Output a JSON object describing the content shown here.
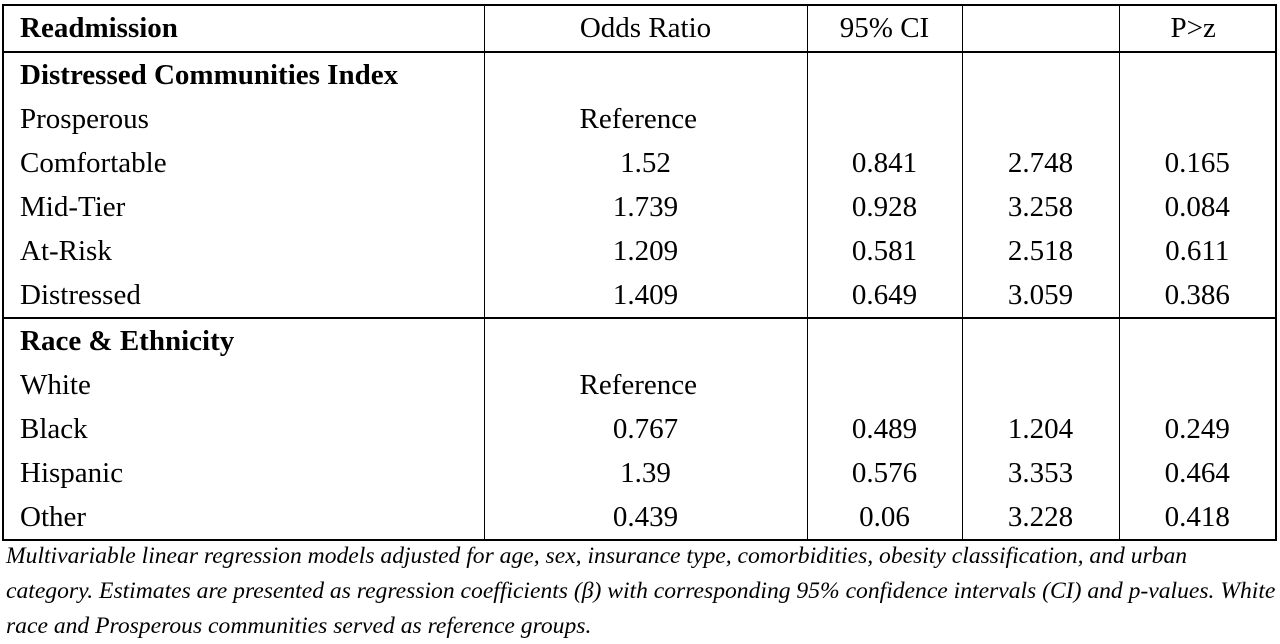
{
  "table": {
    "headers": {
      "label": "Readmission",
      "odds_ratio": "Odds Ratio",
      "ci": "95% CI",
      "ci_upper": "",
      "p": "P>z"
    },
    "sections": [
      {
        "title": "Distressed Communities Index",
        "rows": [
          {
            "label": "Prosperous",
            "or": "Reference",
            "ci_low": "",
            "ci_high": "",
            "p": ""
          },
          {
            "label": "Comfortable",
            "or": "1.52",
            "ci_low": "0.841",
            "ci_high": "2.748",
            "p": "0.165"
          },
          {
            "label": "Mid-Tier",
            "or": "1.739",
            "ci_low": "0.928",
            "ci_high": "3.258",
            "p": "0.084"
          },
          {
            "label": "At-Risk",
            "or": "1.209",
            "ci_low": "0.581",
            "ci_high": "2.518",
            "p": "0.611"
          },
          {
            "label": "Distressed",
            "or": "1.409",
            "ci_low": "0.649",
            "ci_high": "3.059",
            "p": "0.386"
          }
        ]
      },
      {
        "title": "Race & Ethnicity",
        "rows": [
          {
            "label": "White",
            "or": "Reference",
            "ci_low": "",
            "ci_high": "",
            "p": ""
          },
          {
            "label": "Black",
            "or": "0.767",
            "ci_low": "0.489",
            "ci_high": "1.204",
            "p": "0.249"
          },
          {
            "label": "Hispanic",
            "or": "1.39",
            "ci_low": "0.576",
            "ci_high": "3.353",
            "p": "0.464"
          },
          {
            "label": "Other",
            "or": "0.439",
            "ci_low": "0.06",
            "ci_high": "3.228",
            "p": "0.418"
          }
        ]
      }
    ]
  },
  "caption": "Multivariable linear regression models adjusted for age, sex, insurance type, comorbidities, obesity classification, and urban category. Estimates are presented as regression coefficients (β) with corresponding 95% confidence intervals (CI) and p-values. White race and Prosperous communities served as reference groups."
}
